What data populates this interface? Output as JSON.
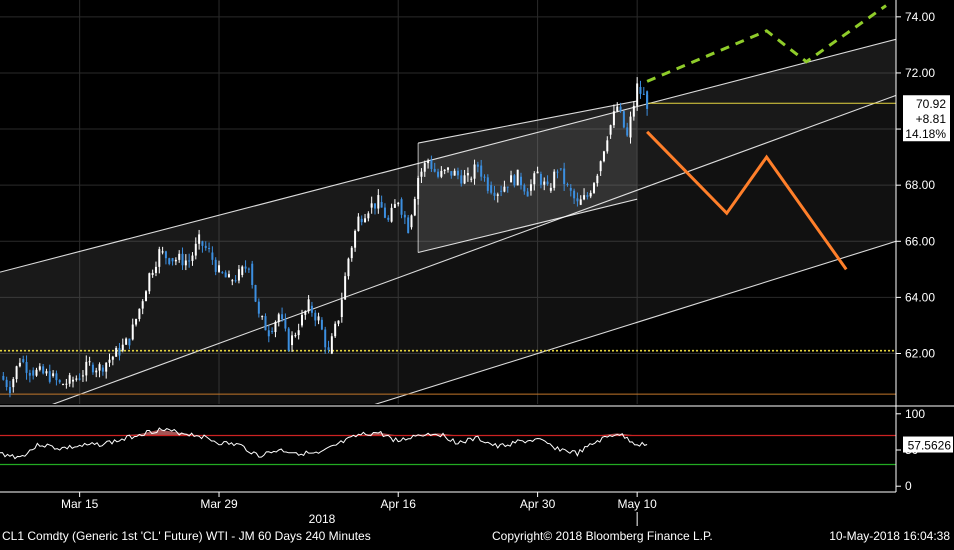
{
  "chart_data": [
    {
      "type": "candlestick",
      "panel": "price",
      "title": "",
      "xlabel": "",
      "ylabel": "",
      "ylim": [
        60.2,
        74.6
      ],
      "y_ticks": [
        "74.00",
        "72.00",
        "70.00",
        "68.00",
        "66.00",
        "64.00",
        "62.00"
      ],
      "x_ticks": [
        {
          "date": "2018-03-15",
          "label": "Mar 15"
        },
        {
          "date": "2018-03-29",
          "label": "Mar 29"
        },
        {
          "date": "2018-04-16",
          "label": "Apr 16"
        },
        {
          "date": "2018-04-30",
          "label": "Apr 30"
        },
        {
          "date": "2018-05-10",
          "label": "May 10"
        }
      ],
      "x_year_label": "2018",
      "xlim": [
        "2018-03-07",
        "2018-06-05"
      ],
      "last_price": {
        "value": "70.92",
        "change": "+8.81",
        "change_pct": "14.18%"
      },
      "series": [
        {
          "kind": "close",
          "points": [
            [
              "2018-03-07",
              61.2
            ],
            [
              "2018-03-08",
              60.8
            ],
            [
              "2018-03-09",
              61.8
            ],
            [
              "2018-03-10",
              61.4
            ],
            [
              "2018-03-12",
              61.2
            ],
            [
              "2018-03-13",
              60.9
            ],
            [
              "2018-03-14",
              61.0
            ],
            [
              "2018-03-15",
              61.2
            ],
            [
              "2018-03-16",
              61.6
            ],
            [
              "2018-03-17",
              61.5
            ],
            [
              "2018-03-19",
              62.1
            ],
            [
              "2018-03-20",
              62.5
            ],
            [
              "2018-03-21",
              63.6
            ],
            [
              "2018-03-22",
              64.8
            ],
            [
              "2018-03-23",
              65.6
            ],
            [
              "2018-03-24",
              65.4
            ],
            [
              "2018-03-26",
              65.3
            ],
            [
              "2018-03-27",
              66.0
            ],
            [
              "2018-03-28",
              65.6
            ],
            [
              "2018-03-29",
              64.9
            ],
            [
              "2018-03-30",
              64.6
            ],
            [
              "2018-03-31",
              64.8
            ],
            [
              "2018-04-01",
              65.2
            ],
            [
              "2018-04-02",
              63.3
            ],
            [
              "2018-04-03",
              62.8
            ],
            [
              "2018-04-04",
              63.4
            ],
            [
              "2018-04-05",
              62.3
            ],
            [
              "2018-04-06",
              63.0
            ],
            [
              "2018-04-07",
              63.7
            ],
            [
              "2018-04-08",
              63.2
            ],
            [
              "2018-04-09",
              62.0
            ],
            [
              "2018-04-10",
              63.3
            ],
            [
              "2018-04-11",
              65.4
            ],
            [
              "2018-04-12",
              66.8
            ],
            [
              "2018-04-13",
              67.2
            ],
            [
              "2018-04-14",
              67.4
            ],
            [
              "2018-04-15",
              66.7
            ],
            [
              "2018-04-16",
              67.5
            ],
            [
              "2018-04-17",
              66.5
            ],
            [
              "2018-04-18",
              68.3
            ],
            [
              "2018-04-19",
              68.9
            ],
            [
              "2018-04-20",
              68.3
            ],
            [
              "2018-04-21",
              68.5
            ],
            [
              "2018-04-23",
              68.2
            ],
            [
              "2018-04-24",
              68.7
            ],
            [
              "2018-04-25",
              68.0
            ],
            [
              "2018-04-26",
              67.8
            ],
            [
              "2018-04-27",
              68.1
            ],
            [
              "2018-04-28",
              68.3
            ],
            [
              "2018-04-29",
              67.8
            ],
            [
              "2018-04-30",
              68.4
            ],
            [
              "2018-05-01",
              67.8
            ],
            [
              "2018-05-02",
              68.6
            ],
            [
              "2018-05-03",
              67.9
            ],
            [
              "2018-05-04",
              67.3
            ],
            [
              "2018-05-05",
              67.6
            ],
            [
              "2018-05-06",
              68.5
            ],
            [
              "2018-05-07",
              69.8
            ],
            [
              "2018-05-08",
              70.8
            ],
            [
              "2018-05-09",
              69.7
            ],
            [
              "2018-05-10",
              71.5
            ],
            [
              "2018-05-11",
              70.92
            ]
          ]
        }
      ],
      "channels": [
        {
          "name": "outer-upper",
          "from": [
            "2018-03-07",
            64.9
          ],
          "to": [
            "2018-06-05",
            73.2
          ]
        },
        {
          "name": "outer-mid",
          "from": [
            "2018-03-07",
            59.5
          ],
          "to": [
            "2018-06-05",
            71.2
          ]
        },
        {
          "name": "outer-lower",
          "from": [
            "2018-03-07",
            56.0
          ],
          "to": [
            "2018-06-05",
            66.0
          ]
        },
        {
          "name": "inner-upper",
          "from": [
            "2018-04-18",
            69.5
          ],
          "to": [
            "2018-05-10",
            71.0
          ]
        },
        {
          "name": "inner-lower",
          "from": [
            "2018-04-18",
            65.6
          ],
          "to": [
            "2018-05-10",
            67.5
          ]
        }
      ],
      "inner_channel_range": [
        "2018-04-18",
        "2018-05-10"
      ],
      "projections": [
        {
          "name": "bullish-path",
          "color": "#8fcc2a",
          "dashed": true,
          "points": [
            [
              "2018-05-11",
              71.7
            ],
            [
              "2018-05-23",
              73.5
            ],
            [
              "2018-05-27",
              72.4
            ],
            [
              "2018-06-04",
              74.4
            ]
          ]
        },
        {
          "name": "bearish-path",
          "color": "#ff7f2a",
          "dashed": false,
          "points": [
            [
              "2018-05-11",
              69.9
            ],
            [
              "2018-05-19",
              67.0
            ],
            [
              "2018-05-23",
              69.0
            ],
            [
              "2018-05-31",
              65.0
            ]
          ]
        }
      ],
      "reference_lines": [
        {
          "name": "last-price-line",
          "value": 70.92,
          "color": "#e6d640",
          "dashed": false
        },
        {
          "name": "support-line",
          "value": 62.1,
          "color": "#e6d640",
          "dashed": true
        },
        {
          "name": "lower-band-line",
          "value": 60.55,
          "color": "#c2772b",
          "dashed": false
        }
      ]
    },
    {
      "type": "line",
      "panel": "rsi",
      "ylim": [
        -8,
        108
      ],
      "y_ticks": [
        "100",
        "50",
        "0"
      ],
      "last_value": "57.5626",
      "overbought": 70,
      "oversold": 30,
      "series": [
        {
          "points": [
            [
              "2018-03-07",
              45
            ],
            [
              "2018-03-09",
              40
            ],
            [
              "2018-03-11",
              58
            ],
            [
              "2018-03-13",
              52
            ],
            [
              "2018-03-15",
              55
            ],
            [
              "2018-03-17",
              58
            ],
            [
              "2018-03-19",
              63
            ],
            [
              "2018-03-21",
              72
            ],
            [
              "2018-03-23",
              78
            ],
            [
              "2018-03-25",
              74
            ],
            [
              "2018-03-27",
              70
            ],
            [
              "2018-03-29",
              60
            ],
            [
              "2018-03-31",
              57
            ],
            [
              "2018-04-02",
              42
            ],
            [
              "2018-04-04",
              50
            ],
            [
              "2018-04-06",
              46
            ],
            [
              "2018-04-08",
              44
            ],
            [
              "2018-04-10",
              58
            ],
            [
              "2018-04-12",
              70
            ],
            [
              "2018-04-14",
              74
            ],
            [
              "2018-04-16",
              62
            ],
            [
              "2018-04-18",
              71
            ],
            [
              "2018-04-20",
              73
            ],
            [
              "2018-04-22",
              60
            ],
            [
              "2018-04-24",
              66
            ],
            [
              "2018-04-26",
              54
            ],
            [
              "2018-04-28",
              61
            ],
            [
              "2018-04-30",
              64
            ],
            [
              "2018-05-02",
              52
            ],
            [
              "2018-05-04",
              45
            ],
            [
              "2018-05-06",
              62
            ],
            [
              "2018-05-08",
              73
            ],
            [
              "2018-05-10",
              58
            ],
            [
              "2018-05-11",
              57.5626
            ]
          ]
        }
      ]
    }
  ],
  "footer": {
    "security": "CL1 Comdty (Generic 1st 'CL' Future) WTI - JM 60 Days 240 Minutes",
    "copyright": "Copyright© 2018 Bloomberg Finance L.P.",
    "timestamp": "10-May-2018 16:04:38"
  },
  "colors": {
    "background": "#000000",
    "panel_border": "#ffffff",
    "grid": "#2a2a2a",
    "candle_up": "#ffffff",
    "candle_down": "#3c8fe0",
    "channel_fill": "#8c8c8c",
    "rsi_upper": "#cc2222",
    "rsi_lower": "#22aa22",
    "rsi_fill": "#d97070"
  }
}
